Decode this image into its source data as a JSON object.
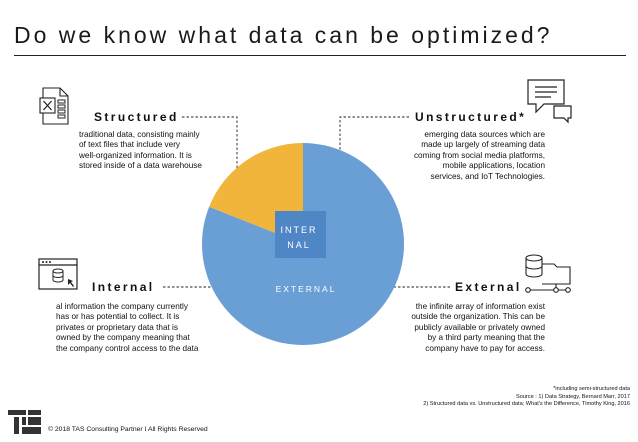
{
  "title": "Do we know what data can be optimized?",
  "quadrants": {
    "structured": {
      "label": "Structured",
      "lines": [
        "traditional data, consisting mainly",
        "of text files that include very",
        "well-organized  information. It is",
        "stored inside of a data warehouse"
      ]
    },
    "unstructured": {
      "label": "Unstructured*",
      "lines": [
        "emerging data sources which are",
        "made up largely of streaming data",
        "coming from social media platforms,",
        "mobile applications, location",
        "services, and IoT Technologies."
      ]
    },
    "internal": {
      "label": "Internal",
      "lines": [
        "al information the company currently",
        "has or has potential to collect. It is",
        "privates or proprietary data that is",
        "owned by the company meaning that",
        "the company control access to the data"
      ]
    },
    "external": {
      "label": "External",
      "lines": [
        "the infinite array of information exist",
        "outside the organization. This can be",
        "publicly  available  or privately owned",
        "by a third party meaning that the",
        "company have to pay for access."
      ]
    }
  },
  "pie": {
    "slices": [
      {
        "name": "Structured",
        "value": 19,
        "color": "#f2b53c"
      },
      {
        "name": "Unstructured",
        "value": 81,
        "color": "#6a9fd6"
      }
    ],
    "outer_label": "EXTERNAL",
    "inner_label_line1": "INTER",
    "inner_label_line2": "NAL",
    "inner_color": "#4f86c6"
  },
  "footer": {
    "copyright": "© 2018 TAS Consulting Partner  I  All Rights Reserved",
    "note": "*including semi-structured data",
    "source1": "Source : 1) Data Strategy, Bernard Marr, 2017",
    "source2": "2) Structured data vs. Unstructured data; What's the Difference, Timothy King, 2016"
  },
  "colors": {
    "accent_gold": "#f2b53c",
    "accent_blue": "#6a9fd6",
    "text": "#111111"
  }
}
